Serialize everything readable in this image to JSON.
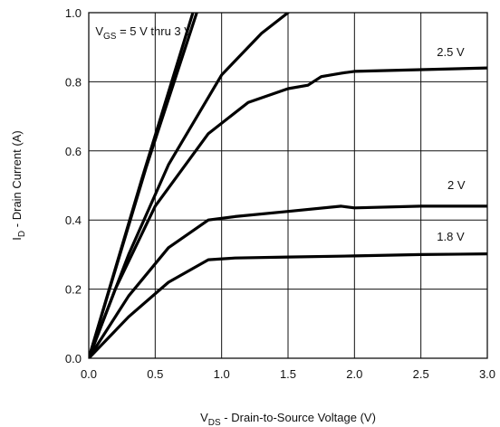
{
  "chart_data": {
    "type": "line",
    "title": "",
    "xlabel": {
      "main": "V",
      "sub": "DS",
      "rest": " - Drain-to-Source Voltage (V)"
    },
    "ylabel": {
      "main": "I",
      "sub": "D",
      "rest": " - Drain Current (A)"
    },
    "xlim": [
      0,
      3
    ],
    "ylim": [
      0,
      1
    ],
    "xticks": [
      "0.0",
      "0.5",
      "1.0",
      "1.5",
      "2.0",
      "2.5",
      "3.0"
    ],
    "yticks": [
      "0.0",
      "0.2",
      "0.4",
      "0.6",
      "0.8",
      "1.0"
    ],
    "grid": true,
    "series": [
      {
        "name": "",
        "points": [
          [
            0,
            0
          ],
          [
            0.4,
            0.52
          ],
          [
            0.8,
            1.02
          ]
        ]
      },
      {
        "name": "",
        "points": [
          [
            0,
            0
          ],
          [
            0.43,
            0.55
          ],
          [
            0.83,
            1.02
          ]
        ]
      },
      {
        "name": "",
        "points": [
          [
            0,
            0
          ],
          [
            0.3,
            0.3
          ],
          [
            0.6,
            0.56
          ],
          [
            1.0,
            0.82
          ],
          [
            1.3,
            0.94
          ],
          [
            1.5,
            1.0
          ]
        ]
      },
      {
        "name": "",
        "points": [
          [
            0,
            0
          ],
          [
            0.2,
            0.2
          ],
          [
            0.5,
            0.44
          ],
          [
            0.9,
            0.65
          ],
          [
            1.2,
            0.74
          ],
          [
            1.5,
            0.78
          ],
          [
            1.65,
            0.79
          ],
          [
            1.75,
            0.815
          ],
          [
            1.9,
            0.825
          ],
          [
            2.0,
            0.83
          ],
          [
            2.5,
            0.835
          ],
          [
            3.0,
            0.84
          ]
        ]
      },
      {
        "name": "",
        "points": [
          [
            0,
            0
          ],
          [
            0.3,
            0.18
          ],
          [
            0.6,
            0.32
          ],
          [
            0.9,
            0.4
          ],
          [
            1.1,
            0.41
          ],
          [
            1.5,
            0.425
          ],
          [
            1.9,
            0.44
          ],
          [
            2.0,
            0.435
          ],
          [
            2.5,
            0.44
          ],
          [
            3.0,
            0.44
          ]
        ]
      },
      {
        "name": "",
        "points": [
          [
            0,
            0
          ],
          [
            0.3,
            0.12
          ],
          [
            0.6,
            0.22
          ],
          [
            0.9,
            0.285
          ],
          [
            1.1,
            0.29
          ],
          [
            1.5,
            0.293
          ],
          [
            2.0,
            0.296
          ],
          [
            2.5,
            0.3
          ],
          [
            3.0,
            0.302
          ]
        ]
      }
    ],
    "annotations": [
      {
        "text_main": "V",
        "text_sub": "GS",
        "text_rest": " = 5 V thru 3 V",
        "x": 0.05,
        "y": 0.935
      },
      {
        "text": "2.5 V",
        "x": 2.62,
        "y": 0.875
      },
      {
        "text": "2 V",
        "x": 2.7,
        "y": 0.49
      },
      {
        "text": "1.8 V",
        "x": 2.62,
        "y": 0.34
      }
    ]
  }
}
